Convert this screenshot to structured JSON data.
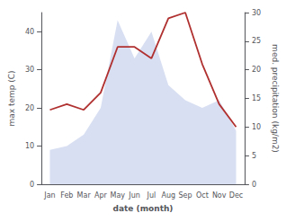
{
  "chart_data": {
    "type": "line",
    "xlabel": "date (month)",
    "ylabel": "max temp (C)",
    "y2label": "med. precipitation (kg/m2)",
    "categories": [
      "Jan",
      "Feb",
      "Mar",
      "Apr",
      "May",
      "Jun",
      "Jul",
      "Aug",
      "Sep",
      "Oct",
      "Nov",
      "Dec"
    ],
    "series": [
      {
        "type": "area",
        "color": "#b8c4e8",
        "values": [
          9,
          10,
          13,
          20,
          43,
          33,
          40,
          26,
          22,
          20,
          22,
          14
        ]
      },
      {
        "type": "line",
        "color": "#b03030",
        "axis": "y2",
        "values": [
          13,
          14,
          13,
          16,
          24,
          24,
          22,
          29,
          30,
          21,
          14,
          10
        ]
      }
    ],
    "ylim": [
      0,
      45
    ],
    "yticks": [
      0,
      10,
      20,
      30,
      40
    ],
    "y2lim": [
      0,
      30
    ],
    "y2ticks": [
      0,
      5,
      10,
      15,
      20,
      25,
      30
    ],
    "grid": false
  }
}
